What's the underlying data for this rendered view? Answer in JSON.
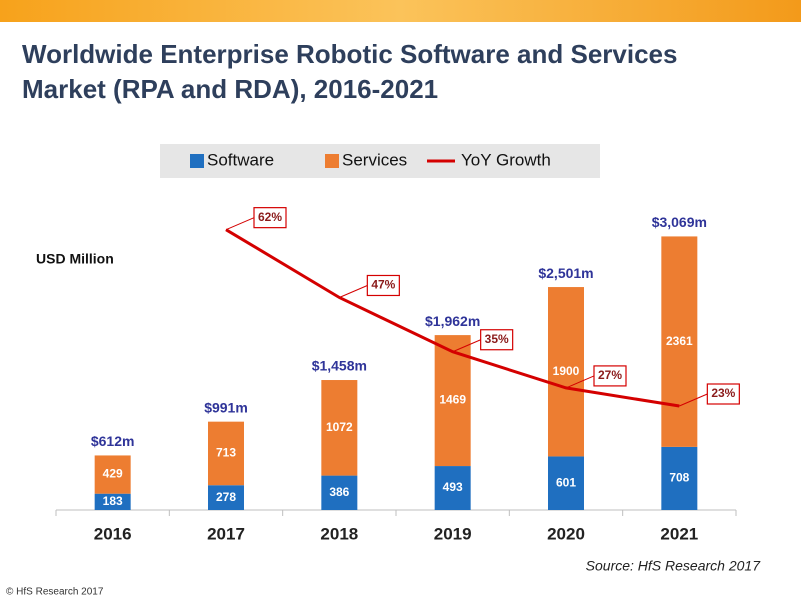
{
  "chart_data": {
    "type": "bar",
    "stacked": true,
    "title": [
      "Worldwide Enterprise Robotic Software and Services",
      "Market (RPA and RDA), 2016-2021"
    ],
    "y_label": "USD Million",
    "categories": [
      "2016",
      "2017",
      "2018",
      "2019",
      "2020",
      "2021"
    ],
    "series": [
      {
        "name": "Software",
        "color": "#1f6fc0",
        "values": [
          183,
          278,
          386,
          493,
          601,
          708
        ]
      },
      {
        "name": "Services",
        "color": "#ed7d31",
        "values": [
          429,
          713,
          1072,
          1469,
          1900,
          2361
        ]
      },
      {
        "name": "YoY Growth",
        "type": "line",
        "axis": "y2",
        "color": "#d40000",
        "values": [
          null,
          62,
          47,
          35,
          27,
          23
        ],
        "value_labels": [
          null,
          "62%",
          "47%",
          "35%",
          "27%",
          "23%"
        ]
      }
    ],
    "totals": {
      "values": [
        612,
        991,
        1458,
        1962,
        2501,
        3069
      ],
      "value_labels": [
        "$612m",
        "$991m",
        "$1,458m",
        "$1,962m",
        "$2,501m",
        "$3,069m"
      ]
    },
    "ylim": [
      0,
      3500
    ],
    "y2lim": [
      0,
      69
    ],
    "source": "Source: HfS Research 2017",
    "footer": "© HfS Research 2017"
  }
}
